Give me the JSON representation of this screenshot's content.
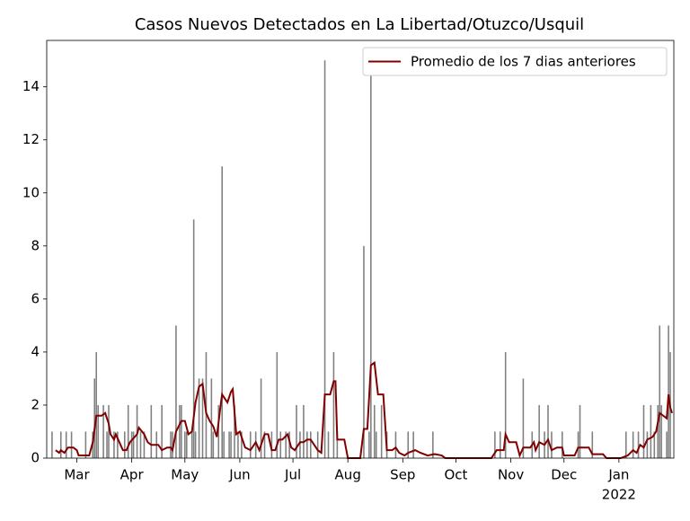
{
  "chart_data": {
    "type": "bar-line",
    "title": "Casos Nuevos Detectados en La Libertad/Otuzco/Usquil",
    "bars": {
      "color": "#808080",
      "x": [
        -14,
        -9,
        -6,
        -3,
        5,
        9,
        10,
        11,
        12,
        15,
        17,
        18,
        21,
        23,
        27,
        29,
        31,
        32,
        34,
        36,
        38,
        42,
        45,
        48,
        53,
        54,
        56,
        58,
        59,
        61,
        62,
        65,
        66,
        67,
        69,
        71,
        73,
        76,
        77,
        80,
        82,
        83,
        86,
        87,
        89,
        91,
        93,
        98,
        101,
        104,
        106,
        110,
        113,
        115,
        118,
        120,
        124,
        126,
        128,
        130,
        132,
        136,
        140,
        142,
        145,
        147,
        162,
        165,
        166,
        168,
        169,
        172,
        175,
        180,
        187,
        190,
        201,
        236,
        239,
        242,
        252,
        257,
        261,
        264,
        266,
        268,
        274,
        283,
        284,
        291,
        310,
        314,
        317,
        320,
        322,
        324,
        326,
        328,
        329,
        330,
        333,
        334,
        335
      ],
      "values": [
        1,
        1,
        1,
        1,
        1,
        1,
        3,
        4,
        2,
        2,
        1,
        2,
        1,
        1,
        1,
        2,
        1,
        1,
        2,
        1,
        1,
        2,
        1,
        2,
        1,
        1,
        5,
        2,
        2,
        1,
        1,
        1,
        9,
        1,
        3,
        3,
        4,
        3,
        1,
        2,
        11,
        1,
        1,
        1,
        2,
        1,
        1,
        1,
        1,
        3,
        1,
        1,
        4,
        1,
        1,
        1,
        2,
        1,
        2,
        1,
        1,
        1,
        15,
        1,
        4,
        1,
        8,
        1,
        15,
        2,
        1,
        2,
        1,
        1,
        1,
        1,
        1,
        1,
        1,
        4,
        3,
        1,
        2,
        1,
        2,
        1,
        1,
        1,
        2,
        1,
        1,
        1,
        1,
        2,
        1,
        2,
        1,
        2,
        5,
        2,
        1,
        5,
        4
      ]
    },
    "series": [
      {
        "name": "Promedio de los 7 dias anteriores",
        "color": "#800000",
        "x": [
          -12,
          -10,
          -9,
          -7,
          -5,
          -2,
          0,
          1,
          7,
          9,
          11,
          14,
          16,
          18,
          19,
          21,
          22,
          24,
          26,
          28,
          30,
          34,
          35,
          38,
          40,
          42,
          46,
          48,
          51,
          53,
          54,
          56,
          59,
          61,
          63,
          65,
          67,
          69,
          71,
          73,
          75,
          77,
          79,
          81,
          82,
          85,
          87,
          88,
          90,
          92,
          93,
          95,
          98,
          101,
          103,
          106,
          108,
          110,
          112,
          114,
          116,
          119,
          121,
          123,
          126,
          128,
          130,
          132,
          136,
          138,
          140,
          143,
          145,
          146,
          147,
          151,
          153,
          160,
          162,
          164,
          166,
          168,
          170,
          173,
          175,
          178,
          180,
          182,
          185,
          187,
          191,
          194,
          198,
          202,
          206,
          208,
          234,
          237,
          241,
          242,
          244,
          248,
          250,
          252,
          256,
          258,
          259,
          261,
          264,
          266,
          268,
          271,
          274,
          275,
          281,
          283,
          289,
          291,
          297,
          299,
          307,
          311,
          314,
          316,
          318,
          320,
          322,
          325,
          327,
          329,
          331,
          333,
          334,
          335,
          336
        ],
        "values": [
          0.3,
          0.2,
          0.3,
          0.2,
          0.4,
          0.4,
          0.3,
          0.1,
          0.1,
          0.6,
          1.6,
          1.6,
          1.7,
          1.3,
          0.9,
          0.7,
          0.9,
          0.6,
          0.3,
          0.3,
          0.6,
          0.9,
          1.15,
          0.9,
          0.6,
          0.5,
          0.5,
          0.3,
          0.4,
          0.4,
          0.3,
          1.0,
          1.4,
          1.4,
          0.9,
          1.0,
          2.1,
          2.7,
          2.8,
          1.7,
          1.4,
          1.2,
          0.8,
          1.9,
          2.4,
          2.1,
          2.5,
          2.6,
          0.9,
          1.0,
          0.8,
          0.4,
          0.3,
          0.6,
          0.3,
          0.9,
          0.9,
          0.3,
          0.3,
          0.7,
          0.7,
          0.9,
          0.4,
          0.3,
          0.6,
          0.6,
          0.7,
          0.7,
          0.3,
          0.2,
          2.4,
          2.4,
          2.9,
          2.9,
          0.7,
          0.7,
          0,
          0,
          1.1,
          1.1,
          3.5,
          3.6,
          2.4,
          2.4,
          0.3,
          0.3,
          0.4,
          0.2,
          0.1,
          0.2,
          0.3,
          0.2,
          0.1,
          0.15,
          0.1,
          0,
          0,
          0.3,
          0.3,
          0.9,
          0.6,
          0.6,
          0.1,
          0.4,
          0.4,
          0.6,
          0.3,
          0.6,
          0.5,
          0.7,
          0.3,
          0.4,
          0.4,
          0.1,
          0.1,
          0.4,
          0.4,
          0.15,
          0.15,
          0,
          0,
          0.1,
          0.3,
          0.2,
          0.5,
          0.4,
          0.7,
          0.8,
          1.0,
          1.7,
          1.6,
          1.5,
          2.4,
          1.9,
          1.7
        ]
      }
    ],
    "xlim": [
      -17,
      337
    ],
    "xticks": [
      {
        "value": 0,
        "label": "Mar"
      },
      {
        "value": 31,
        "label": "Apr"
      },
      {
        "value": 61,
        "label": "May"
      },
      {
        "value": 92,
        "label": "Jun"
      },
      {
        "value": 122,
        "label": "Jul"
      },
      {
        "value": 153,
        "label": "Aug"
      },
      {
        "value": 184,
        "label": "Sep"
      },
      {
        "value": 214,
        "label": "Oct"
      },
      {
        "value": 245,
        "label": "Nov"
      },
      {
        "value": 275,
        "label": "Dec"
      },
      {
        "value": 306,
        "label": "Jan"
      }
    ],
    "year_label": "2022",
    "ylim": [
      0,
      15.75
    ],
    "yticks": [
      0,
      2,
      4,
      6,
      8,
      10,
      12,
      14
    ],
    "legend": "upper right"
  }
}
